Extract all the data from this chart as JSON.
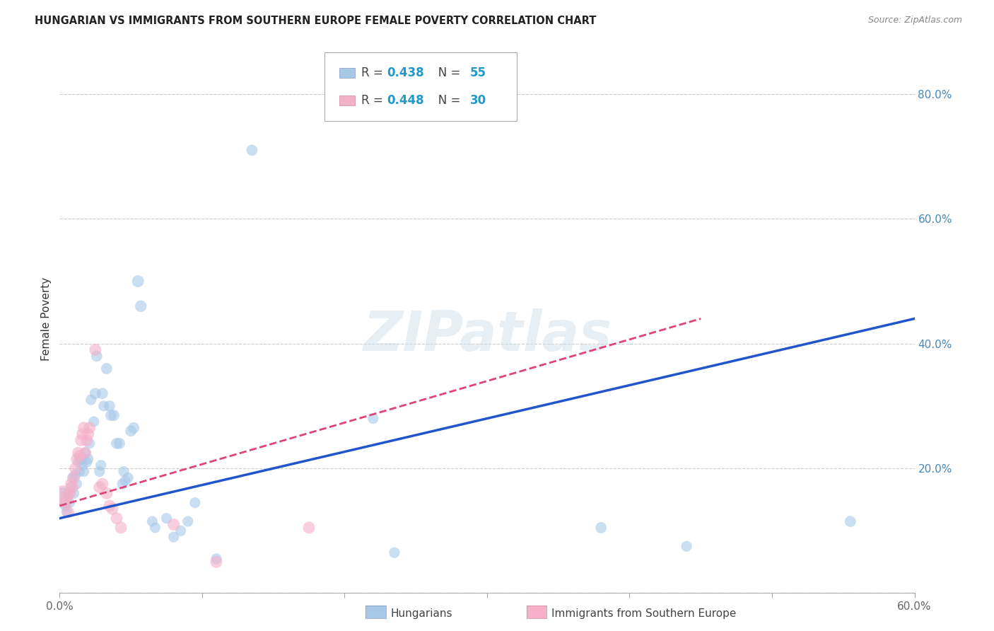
{
  "title": "HUNGARIAN VS IMMIGRANTS FROM SOUTHERN EUROPE FEMALE POVERTY CORRELATION CHART",
  "source": "Source: ZipAtlas.com",
  "ylabel": "Female Poverty",
  "xlim": [
    0.0,
    0.6
  ],
  "ylim": [
    0.0,
    0.88
  ],
  "xtick_positions": [
    0.0,
    0.1,
    0.2,
    0.3,
    0.4,
    0.5,
    0.6
  ],
  "xticklabels": [
    "0.0%",
    "",
    "",
    "",
    "",
    "",
    "60.0%"
  ],
  "ytick_positions": [
    0.0,
    0.2,
    0.4,
    0.6,
    0.8
  ],
  "yticklabels": [
    "",
    "20.0%",
    "40.0%",
    "60.0%",
    "80.0%"
  ],
  "blue_color": "#a8c8e8",
  "pink_color": "#f4b0c8",
  "blue_line_color": "#2255cc",
  "pink_line_color": "#dd4477",
  "blue_R": 0.438,
  "blue_N": 55,
  "pink_R": 0.448,
  "pink_N": 30,
  "blue_points": [
    [
      0.002,
      0.155,
      350
    ],
    [
      0.004,
      0.14,
      120
    ],
    [
      0.005,
      0.13,
      120
    ],
    [
      0.006,
      0.16,
      120
    ],
    [
      0.007,
      0.145,
      120
    ],
    [
      0.008,
      0.17,
      120
    ],
    [
      0.009,
      0.185,
      120
    ],
    [
      0.01,
      0.16,
      120
    ],
    [
      0.011,
      0.19,
      120
    ],
    [
      0.012,
      0.175,
      120
    ],
    [
      0.013,
      0.21,
      120
    ],
    [
      0.014,
      0.195,
      120
    ],
    [
      0.015,
      0.215,
      150
    ],
    [
      0.016,
      0.205,
      120
    ],
    [
      0.017,
      0.195,
      120
    ],
    [
      0.018,
      0.225,
      120
    ],
    [
      0.019,
      0.21,
      120
    ],
    [
      0.02,
      0.215,
      120
    ],
    [
      0.021,
      0.24,
      120
    ],
    [
      0.022,
      0.31,
      120
    ],
    [
      0.024,
      0.275,
      120
    ],
    [
      0.025,
      0.32,
      130
    ],
    [
      0.026,
      0.38,
      130
    ],
    [
      0.028,
      0.195,
      120
    ],
    [
      0.029,
      0.205,
      120
    ],
    [
      0.03,
      0.32,
      130
    ],
    [
      0.031,
      0.3,
      120
    ],
    [
      0.033,
      0.36,
      130
    ],
    [
      0.035,
      0.3,
      130
    ],
    [
      0.036,
      0.285,
      130
    ],
    [
      0.038,
      0.285,
      130
    ],
    [
      0.04,
      0.24,
      130
    ],
    [
      0.042,
      0.24,
      130
    ],
    [
      0.044,
      0.175,
      120
    ],
    [
      0.045,
      0.195,
      120
    ],
    [
      0.046,
      0.18,
      120
    ],
    [
      0.048,
      0.185,
      120
    ],
    [
      0.05,
      0.26,
      130
    ],
    [
      0.052,
      0.265,
      130
    ],
    [
      0.055,
      0.5,
      150
    ],
    [
      0.057,
      0.46,
      140
    ],
    [
      0.065,
      0.115,
      120
    ],
    [
      0.067,
      0.105,
      120
    ],
    [
      0.075,
      0.12,
      120
    ],
    [
      0.08,
      0.09,
      120
    ],
    [
      0.085,
      0.1,
      120
    ],
    [
      0.09,
      0.115,
      120
    ],
    [
      0.095,
      0.145,
      120
    ],
    [
      0.11,
      0.055,
      120
    ],
    [
      0.135,
      0.71,
      130
    ],
    [
      0.22,
      0.28,
      120
    ],
    [
      0.235,
      0.065,
      120
    ],
    [
      0.38,
      0.105,
      130
    ],
    [
      0.44,
      0.075,
      120
    ],
    [
      0.555,
      0.115,
      130
    ]
  ],
  "pink_points": [
    [
      0.002,
      0.155,
      500
    ],
    [
      0.004,
      0.145,
      150
    ],
    [
      0.005,
      0.155,
      150
    ],
    [
      0.006,
      0.13,
      150
    ],
    [
      0.007,
      0.16,
      150
    ],
    [
      0.008,
      0.175,
      150
    ],
    [
      0.009,
      0.17,
      150
    ],
    [
      0.01,
      0.185,
      150
    ],
    [
      0.011,
      0.2,
      150
    ],
    [
      0.012,
      0.215,
      150
    ],
    [
      0.013,
      0.225,
      150
    ],
    [
      0.014,
      0.22,
      150
    ],
    [
      0.015,
      0.245,
      150
    ],
    [
      0.016,
      0.255,
      150
    ],
    [
      0.017,
      0.265,
      150
    ],
    [
      0.018,
      0.225,
      150
    ],
    [
      0.019,
      0.245,
      150
    ],
    [
      0.02,
      0.255,
      150
    ],
    [
      0.021,
      0.265,
      150
    ],
    [
      0.025,
      0.39,
      150
    ],
    [
      0.028,
      0.17,
      150
    ],
    [
      0.03,
      0.175,
      150
    ],
    [
      0.033,
      0.16,
      150
    ],
    [
      0.035,
      0.14,
      150
    ],
    [
      0.037,
      0.135,
      150
    ],
    [
      0.04,
      0.12,
      150
    ],
    [
      0.043,
      0.105,
      150
    ],
    [
      0.08,
      0.11,
      150
    ],
    [
      0.11,
      0.05,
      150
    ],
    [
      0.175,
      0.105,
      150
    ]
  ],
  "blue_line": {
    "x0": 0.0,
    "y0": 0.12,
    "x1": 0.6,
    "y1": 0.44
  },
  "pink_line": {
    "x0": 0.0,
    "y0": 0.14,
    "x1": 0.45,
    "y1": 0.44
  }
}
